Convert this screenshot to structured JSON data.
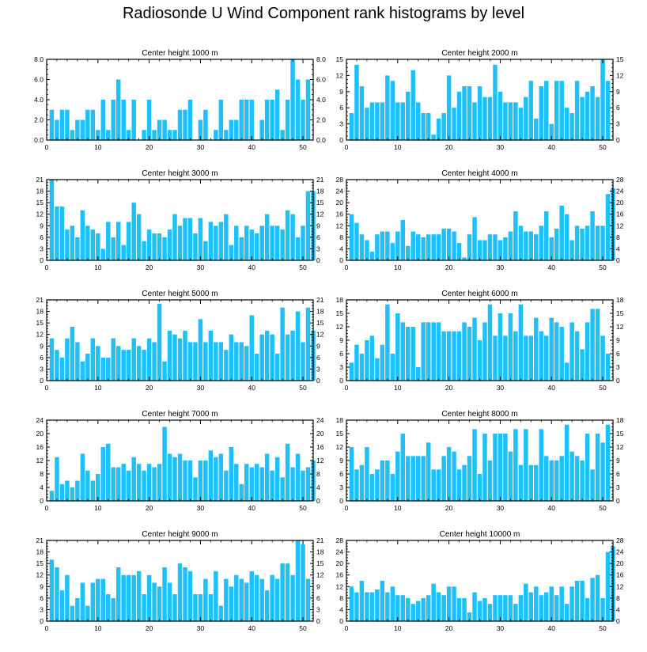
{
  "title": "Radiosonde U Wind Component rank histograms by level",
  "colors": {
    "bar": "#1ec0f8",
    "axis": "#000000"
  },
  "chart_data": [
    {
      "type": "bar",
      "title": "Center height 1000 m",
      "ylim": [
        0,
        8
      ],
      "yticks": [
        "0.0",
        "2.0",
        "4.0",
        "6.0",
        "8.0"
      ],
      "xlim": [
        0,
        52
      ],
      "xticks": [
        0,
        10,
        20,
        30,
        40,
        50
      ],
      "values": [
        3,
        2,
        3,
        3,
        1,
        2,
        2,
        3,
        3,
        1,
        4,
        1,
        4,
        6,
        4,
        1,
        4,
        0,
        1,
        4,
        1,
        2,
        2,
        1,
        1,
        3,
        3,
        4,
        0,
        2,
        3,
        0,
        1,
        4,
        1,
        2,
        2,
        4,
        4,
        4,
        0,
        2,
        4,
        4,
        5,
        1,
        4,
        8,
        6,
        4,
        6
      ]
    },
    {
      "type": "bar",
      "title": "Center height 2000 m",
      "ylim": [
        0,
        15
      ],
      "yticks": [
        "0",
        "3",
        "6",
        "9",
        "12",
        "15"
      ],
      "xlim": [
        0,
        52
      ],
      "xticks": [
        0,
        10,
        20,
        30,
        40,
        50
      ],
      "values": [
        5,
        14,
        10,
        6,
        7,
        7,
        7,
        12,
        11,
        7,
        7,
        9,
        13,
        7,
        5,
        5,
        1,
        4,
        5,
        12,
        6,
        9,
        10,
        10,
        7,
        10,
        8,
        8,
        14,
        9,
        7,
        7,
        7,
        6,
        8,
        11,
        4,
        10,
        11,
        3,
        11,
        11,
        6,
        5,
        11,
        8,
        9,
        10,
        8,
        15,
        11
      ]
    },
    {
      "type": "bar",
      "title": "Center height 3000 m",
      "ylim": [
        0,
        21
      ],
      "yticks": [
        "0",
        "3",
        "6",
        "9",
        "12",
        "15",
        "18",
        "21"
      ],
      "xlim": [
        0,
        52
      ],
      "xticks": [
        0,
        10,
        20,
        30,
        40,
        50
      ],
      "values": [
        21,
        14,
        14,
        8,
        9,
        6,
        13,
        9,
        8,
        7,
        3,
        10,
        6,
        10,
        4,
        10,
        15,
        12,
        5,
        8,
        7,
        7,
        6,
        8,
        12,
        9,
        11,
        11,
        7,
        11,
        5,
        10,
        9,
        10,
        12,
        4,
        9,
        6,
        9,
        8,
        7,
        9,
        12,
        9,
        9,
        8,
        13,
        12,
        6,
        9,
        18,
        18
      ]
    },
    {
      "type": "bar",
      "title": "Center height 4000 m",
      "ylim": [
        0,
        28
      ],
      "yticks": [
        "0",
        "4",
        "8",
        "12",
        "16",
        "20",
        "24",
        "28"
      ],
      "xlim": [
        0,
        52
      ],
      "xticks": [
        0,
        10,
        20,
        30,
        40,
        50
      ],
      "values": [
        16,
        13,
        9,
        7,
        3,
        9,
        10,
        10,
        6,
        10,
        14,
        5,
        10,
        9,
        8,
        9,
        9,
        9,
        11,
        11,
        10,
        6,
        1,
        9,
        15,
        7,
        7,
        9,
        9,
        7,
        8,
        10,
        17,
        12,
        10,
        10,
        9,
        12,
        17,
        8,
        11,
        19,
        16,
        7,
        12,
        11,
        12,
        17,
        12,
        12,
        23,
        25
      ]
    },
    {
      "type": "bar",
      "title": "Center height 5000 m",
      "ylim": [
        0,
        21
      ],
      "yticks": [
        "0",
        "3",
        "6",
        "9",
        "12",
        "15",
        "18",
        "21"
      ],
      "xlim": [
        0,
        52
      ],
      "xticks": [
        0,
        10,
        20,
        30,
        40,
        50
      ],
      "values": [
        11,
        8,
        6,
        11,
        14,
        10,
        5,
        7,
        11,
        9,
        6,
        6,
        11,
        9,
        8,
        8,
        11,
        9,
        8,
        11,
        10,
        20,
        5,
        13,
        12,
        11,
        13,
        10,
        10,
        16,
        10,
        13,
        10,
        10,
        8,
        12,
        10,
        10,
        9,
        17,
        7,
        12,
        13,
        12,
        7,
        19,
        12,
        13,
        18,
        10,
        19,
        13
      ]
    },
    {
      "type": "bar",
      "title": "Center height 6000 m",
      "ylim": [
        0,
        18
      ],
      "yticks": [
        "0",
        "3",
        "6",
        "9",
        "12",
        "15",
        "18"
      ],
      "xlim": [
        0,
        52
      ],
      "xticks": [
        0,
        10,
        20,
        30,
        40,
        50
      ],
      "values": [
        4,
        8,
        6,
        9,
        10,
        5,
        8,
        17,
        6,
        15,
        13,
        12,
        12,
        3,
        13,
        13,
        13,
        13,
        11,
        11,
        11,
        11,
        13,
        12,
        14,
        9,
        13,
        17,
        10,
        15,
        10,
        15,
        11,
        17,
        10,
        10,
        14,
        11,
        10,
        14,
        13,
        12,
        4,
        13,
        11,
        7,
        13,
        16,
        16,
        10,
        6
      ]
    },
    {
      "type": "bar",
      "title": "Center height 7000 m",
      "ylim": [
        0,
        24
      ],
      "yticks": [
        "0",
        "4",
        "8",
        "12",
        "16",
        "20",
        "24"
      ],
      "xlim": [
        0,
        52
      ],
      "xticks": [
        0,
        10,
        20,
        30,
        40,
        50
      ],
      "values": [
        3,
        13,
        5,
        6,
        4,
        6,
        14,
        9,
        6,
        8,
        16,
        17,
        10,
        10,
        11,
        9,
        13,
        11,
        9,
        11,
        10,
        11,
        22,
        14,
        13,
        14,
        12,
        12,
        7,
        12,
        12,
        15,
        13,
        14,
        9,
        16,
        11,
        5,
        11,
        10,
        11,
        10,
        14,
        9,
        13,
        7,
        17,
        10,
        14,
        9,
        10,
        12
      ]
    },
    {
      "type": "bar",
      "title": "Center height 8000 m",
      "ylim": [
        0,
        18
      ],
      "yticks": [
        "0",
        "3",
        "6",
        "9",
        "12",
        "15",
        "18"
      ],
      "xlim": [
        0,
        52
      ],
      "xticks": [
        0,
        10,
        20,
        30,
        40,
        50
      ],
      "values": [
        12,
        7,
        8,
        12,
        6,
        7,
        9,
        9,
        6,
        11,
        15,
        10,
        10,
        10,
        10,
        13,
        7,
        7,
        10,
        12,
        11,
        7,
        8,
        10,
        16,
        6,
        15,
        9,
        15,
        15,
        15,
        11,
        16,
        8,
        16,
        8,
        8,
        16,
        10,
        9,
        9,
        10,
        17,
        11,
        10,
        9,
        15,
        7,
        15,
        13,
        17
      ]
    },
    {
      "type": "bar",
      "title": "Center height 9000 m",
      "ylim": [
        0,
        21
      ],
      "yticks": [
        "0",
        "3",
        "6",
        "9",
        "12",
        "15",
        "18",
        "21"
      ],
      "xlim": [
        0,
        52
      ],
      "xticks": [
        0,
        10,
        20,
        30,
        40,
        50
      ],
      "values": [
        16,
        14,
        8,
        12,
        4,
        6,
        10,
        4,
        10,
        11,
        11,
        7,
        6,
        14,
        12,
        12,
        12,
        13,
        7,
        12,
        10,
        9,
        14,
        10,
        7,
        15,
        14,
        13,
        7,
        7,
        11,
        7,
        13,
        4,
        11,
        9,
        12,
        11,
        10,
        13,
        12,
        11,
        8,
        12,
        11,
        15,
        15,
        12,
        21,
        20,
        11
      ]
    },
    {
      "type": "bar",
      "title": "Center height 10000 m",
      "ylim": [
        0,
        28
      ],
      "yticks": [
        "0",
        "4",
        "8",
        "12",
        "16",
        "20",
        "24",
        "28"
      ],
      "xlim": [
        0,
        52
      ],
      "xticks": [
        0,
        10,
        20,
        30,
        40,
        50
      ],
      "values": [
        12,
        10,
        14,
        10,
        10,
        11,
        14,
        10,
        12,
        9,
        9,
        8,
        6,
        7,
        8,
        9,
        13,
        10,
        9,
        12,
        12,
        8,
        8,
        3,
        10,
        7,
        8,
        6,
        9,
        9,
        9,
        9,
        6,
        9,
        13,
        10,
        12,
        9,
        10,
        12,
        9,
        12,
        6,
        12,
        14,
        14,
        8,
        15,
        16,
        8,
        24,
        26
      ]
    }
  ]
}
